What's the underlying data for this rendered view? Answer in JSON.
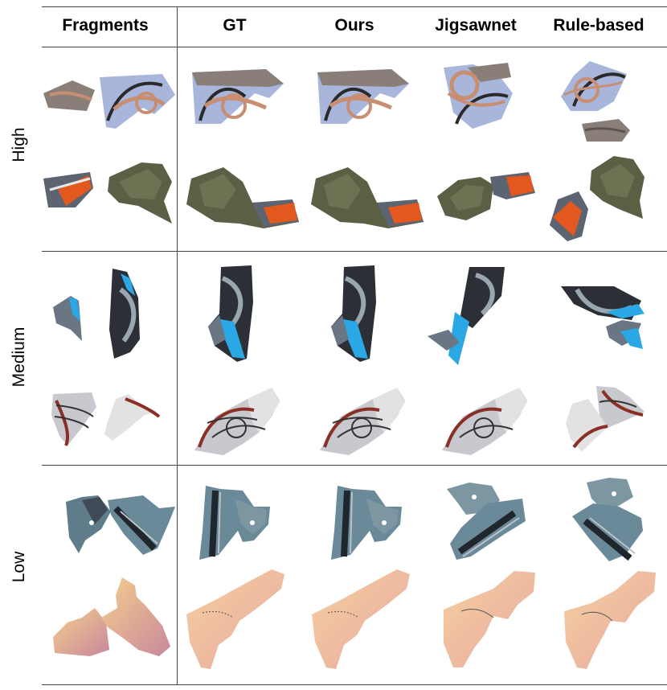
{
  "columns": [
    "Fragments",
    "GT",
    "Ours",
    "Jigsawnet",
    "Rule-based"
  ],
  "rows": [
    "High",
    "Medium",
    "Low"
  ],
  "colors": {
    "sky": "#a8b6dc",
    "rope": "#c88e72",
    "rock": "#5b5f43",
    "orange": "#e2581f",
    "tire": "#2c3036",
    "blue": "#2aa8e6",
    "pale": "#e6e6e6",
    "ball_rib": "#8a2f25",
    "road": "#3e4a55",
    "sunset": "#f2c88a",
    "dusk": "#c9879b"
  }
}
